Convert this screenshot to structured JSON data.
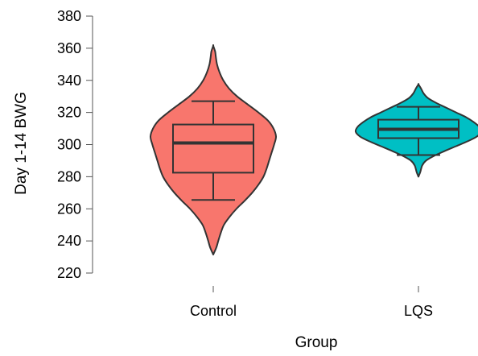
{
  "chart_data": {
    "type": "violin",
    "title": "",
    "xlabel": "Group",
    "ylabel": "Day 1-14 BWG",
    "ylim": [
      220,
      380
    ],
    "yticks": [
      220,
      240,
      260,
      280,
      300,
      320,
      340,
      360,
      380
    ],
    "grid": false,
    "legend": "none",
    "categories": [
      "Control",
      "LQS"
    ],
    "series": [
      {
        "category": "Control",
        "color": "#F8766D",
        "box": {
          "whisker_low": 265.5,
          "q1": 282.5,
          "median": 301.0,
          "q3": 312.5,
          "whisker_high": 327.0
        },
        "range": [
          231.5,
          361.5
        ],
        "density_profile": [
          [
            231.5,
            0.0
          ],
          [
            236,
            0.05
          ],
          [
            240,
            0.08
          ],
          [
            245,
            0.12
          ],
          [
            250,
            0.17
          ],
          [
            255,
            0.26
          ],
          [
            260,
            0.37
          ],
          [
            265,
            0.5
          ],
          [
            270,
            0.62
          ],
          [
            275,
            0.72
          ],
          [
            280,
            0.8
          ],
          [
            285,
            0.85
          ],
          [
            290,
            0.89
          ],
          [
            295,
            0.93
          ],
          [
            300,
            0.97
          ],
          [
            305,
            1.0
          ],
          [
            310,
            0.96
          ],
          [
            315,
            0.87
          ],
          [
            320,
            0.72
          ],
          [
            325,
            0.55
          ],
          [
            330,
            0.38
          ],
          [
            335,
            0.25
          ],
          [
            340,
            0.16
          ],
          [
            345,
            0.1
          ],
          [
            350,
            0.06
          ],
          [
            355,
            0.04
          ],
          [
            358,
            0.03
          ],
          [
            361.5,
            0.0
          ]
        ]
      },
      {
        "category": "LQS",
        "color": "#00BFC4",
        "box": {
          "whisker_low": 293.5,
          "q1": 304.0,
          "median": 309.5,
          "q3": 315.5,
          "whisker_high": 323.5
        },
        "range": [
          280.0,
          337.5
        ],
        "density_profile": [
          [
            280.0,
            0.0
          ],
          [
            283,
            0.03
          ],
          [
            287,
            0.06
          ],
          [
            290,
            0.12
          ],
          [
            293,
            0.25
          ],
          [
            296,
            0.42
          ],
          [
            299,
            0.6
          ],
          [
            302,
            0.78
          ],
          [
            305,
            0.93
          ],
          [
            308,
            1.0
          ],
          [
            311,
            0.97
          ],
          [
            314,
            0.88
          ],
          [
            317,
            0.76
          ],
          [
            320,
            0.6
          ],
          [
            323,
            0.44
          ],
          [
            326,
            0.28
          ],
          [
            329,
            0.15
          ],
          [
            332,
            0.08
          ],
          [
            335,
            0.04
          ],
          [
            337.5,
            0.0
          ]
        ]
      }
    ]
  }
}
